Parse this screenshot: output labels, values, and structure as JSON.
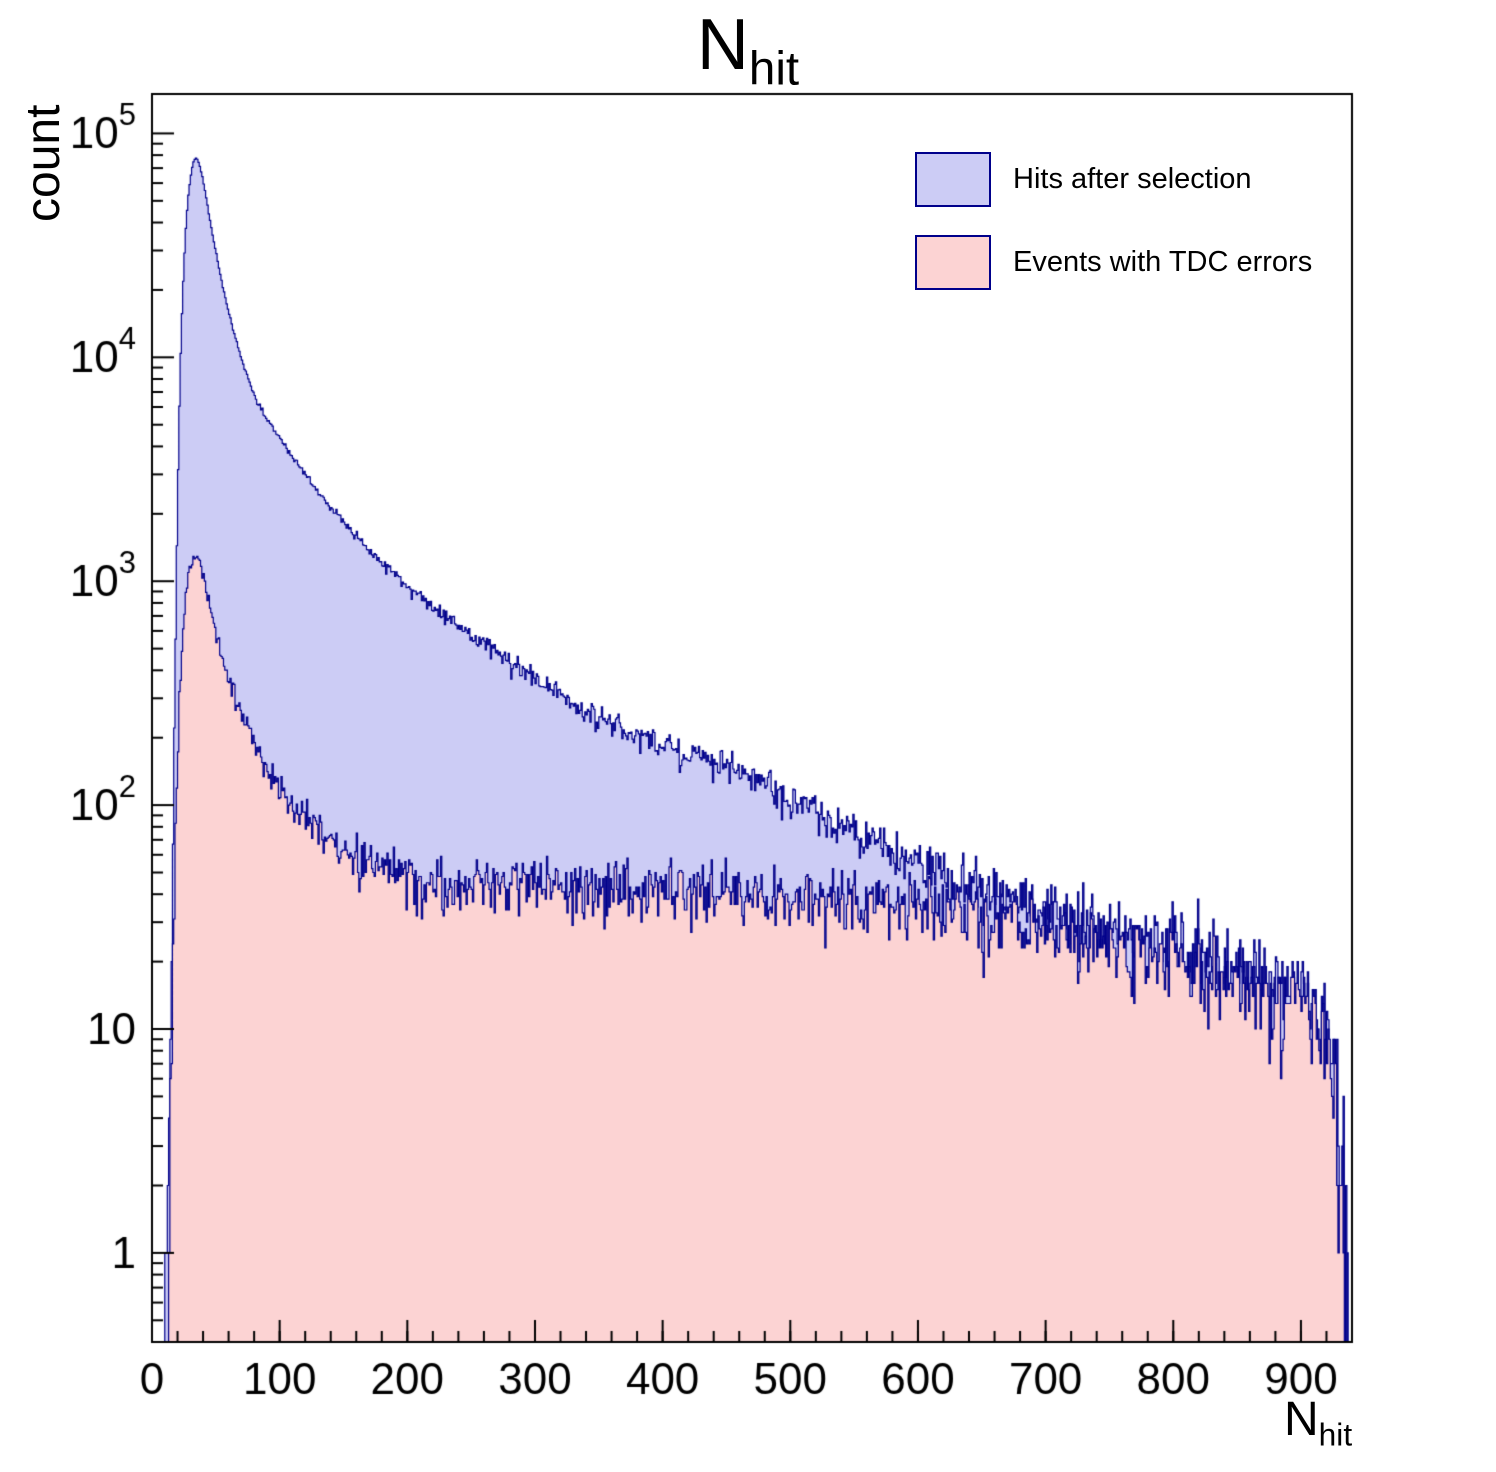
{
  "chart_data": {
    "type": "histogram",
    "title": {
      "main": "N",
      "sub": "hit"
    },
    "x_label": {
      "main": "N",
      "sub": "hit"
    },
    "y_label": "count",
    "y_scale": "log",
    "x_range": [
      0,
      940
    ],
    "y_range": [
      0.4,
      150000
    ],
    "bin_width": 1,
    "x_ticks": [
      0,
      100,
      200,
      300,
      400,
      500,
      600,
      700,
      800,
      900
    ],
    "x_minor_step": 20,
    "y_tick_exponents": [
      0,
      1,
      2,
      3,
      4,
      5
    ],
    "frame_color": "#000000",
    "noise_seed": 1337,
    "legend": {
      "entries": [
        {
          "label": "Hits after selection",
          "fill": "#ccccf5",
          "stroke": "#00008b"
        },
        {
          "label": "Events with TDC errors",
          "fill": "#fcd3d3",
          "stroke": "#00008b"
        }
      ]
    },
    "series": [
      {
        "name": "Hits after selection",
        "fill": "#ccccf5",
        "stroke": "#00008b",
        "envelope": [
          [
            8,
            0.05
          ],
          [
            10,
            0.3
          ],
          [
            12,
            1.2
          ],
          [
            14,
            6
          ],
          [
            16,
            45
          ],
          [
            18,
            350
          ],
          [
            20,
            2200
          ],
          [
            22,
            8500
          ],
          [
            24,
            19000
          ],
          [
            26,
            34000
          ],
          [
            28,
            50000
          ],
          [
            30,
            63000
          ],
          [
            32,
            73000
          ],
          [
            34,
            78000
          ],
          [
            36,
            76000
          ],
          [
            38,
            70000
          ],
          [
            40,
            62000
          ],
          [
            44,
            46000
          ],
          [
            48,
            34000
          ],
          [
            52,
            26000
          ],
          [
            56,
            20000
          ],
          [
            60,
            16000
          ],
          [
            70,
            9800
          ],
          [
            80,
            6800
          ],
          [
            90,
            5300
          ],
          [
            100,
            4400
          ],
          [
            110,
            3600
          ],
          [
            120,
            3000
          ],
          [
            130,
            2500
          ],
          [
            140,
            2150
          ],
          [
            150,
            1850
          ],
          [
            160,
            1600
          ],
          [
            170,
            1400
          ],
          [
            180,
            1230
          ],
          [
            190,
            1080
          ],
          [
            200,
            950
          ],
          [
            220,
            770
          ],
          [
            240,
            630
          ],
          [
            260,
            525
          ],
          [
            280,
            440
          ],
          [
            300,
            370
          ],
          [
            320,
            310
          ],
          [
            340,
            265
          ],
          [
            360,
            232
          ],
          [
            380,
            207
          ],
          [
            400,
            186
          ],
          [
            420,
            170
          ],
          [
            440,
            156
          ],
          [
            460,
            141
          ],
          [
            480,
            122
          ],
          [
            500,
            104
          ],
          [
            520,
            93
          ],
          [
            540,
            83
          ],
          [
            560,
            72
          ],
          [
            580,
            63
          ],
          [
            600,
            56
          ],
          [
            620,
            51
          ],
          [
            640,
            47
          ],
          [
            660,
            43
          ],
          [
            680,
            39
          ],
          [
            700,
            35
          ],
          [
            720,
            32
          ],
          [
            740,
            29
          ],
          [
            760,
            27
          ],
          [
            780,
            25
          ],
          [
            800,
            23
          ],
          [
            820,
            21
          ],
          [
            840,
            19
          ],
          [
            860,
            17.5
          ],
          [
            880,
            16
          ],
          [
            900,
            14.5
          ],
          [
            910,
            13
          ],
          [
            918,
            11
          ],
          [
            926,
            7
          ],
          [
            930,
            3
          ],
          [
            934,
            1.2
          ],
          [
            938,
            0.4
          ],
          [
            940,
            0.1
          ]
        ]
      },
      {
        "name": "Events with TDC errors",
        "fill": "#fcd3d3",
        "stroke": "#00008b",
        "envelope": [
          [
            10,
            0.05
          ],
          [
            12,
            0.5
          ],
          [
            14,
            2.5
          ],
          [
            16,
            12
          ],
          [
            18,
            50
          ],
          [
            20,
            150
          ],
          [
            22,
            330
          ],
          [
            24,
            580
          ],
          [
            26,
            820
          ],
          [
            28,
            1020
          ],
          [
            30,
            1160
          ],
          [
            33,
            1290
          ],
          [
            36,
            1250
          ],
          [
            40,
            1060
          ],
          [
            44,
            830
          ],
          [
            48,
            650
          ],
          [
            52,
            530
          ],
          [
            56,
            440
          ],
          [
            60,
            365
          ],
          [
            70,
            250
          ],
          [
            80,
            185
          ],
          [
            90,
            147
          ],
          [
            100,
            121
          ],
          [
            110,
            102
          ],
          [
            120,
            89
          ],
          [
            130,
            79
          ],
          [
            140,
            71
          ],
          [
            150,
            65
          ],
          [
            160,
            60
          ],
          [
            170,
            56
          ],
          [
            180,
            52
          ],
          [
            190,
            49
          ],
          [
            200,
            47
          ],
          [
            220,
            45
          ],
          [
            240,
            43
          ],
          [
            260,
            44
          ],
          [
            280,
            45
          ],
          [
            300,
            46
          ],
          [
            320,
            45
          ],
          [
            340,
            44
          ],
          [
            360,
            44
          ],
          [
            380,
            43
          ],
          [
            400,
            43
          ],
          [
            420,
            42
          ],
          [
            440,
            42
          ],
          [
            460,
            41
          ],
          [
            480,
            41
          ],
          [
            500,
            40
          ],
          [
            520,
            39
          ],
          [
            540,
            38
          ],
          [
            560,
            37
          ],
          [
            580,
            36
          ],
          [
            600,
            35
          ],
          [
            620,
            34
          ],
          [
            640,
            33
          ],
          [
            660,
            32
          ],
          [
            680,
            30
          ],
          [
            700,
            28
          ],
          [
            720,
            27
          ],
          [
            740,
            25
          ],
          [
            760,
            23
          ],
          [
            780,
            22
          ],
          [
            800,
            20
          ],
          [
            820,
            18.5
          ],
          [
            840,
            17
          ],
          [
            860,
            15.5
          ],
          [
            880,
            14
          ],
          [
            900,
            12.5
          ],
          [
            910,
            11
          ],
          [
            918,
            9
          ],
          [
            926,
            5
          ],
          [
            930,
            2
          ],
          [
            934,
            0.9
          ],
          [
            938,
            0.3
          ],
          [
            940,
            0.1
          ]
        ]
      }
    ]
  }
}
